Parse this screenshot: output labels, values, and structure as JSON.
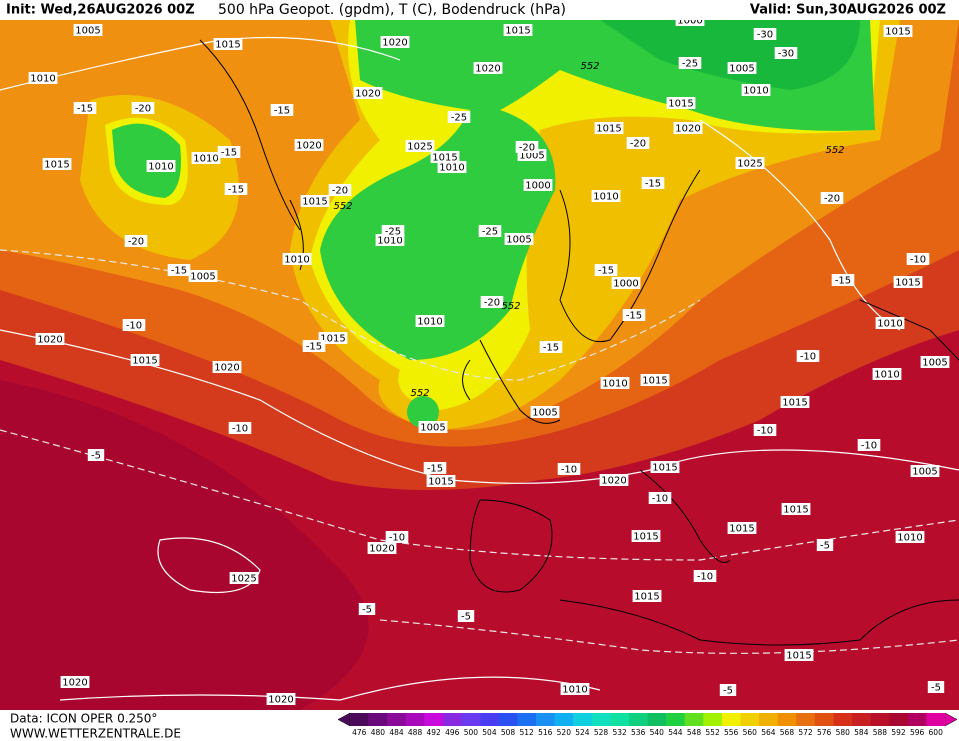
{
  "header": {
    "init": "Init: Wed,26AUG2026 00Z",
    "title": "500 hPa Geopot. (gpdm), T (C), Bodendruck (hPa)",
    "valid": "Valid: Sun,30AUG2026 00Z"
  },
  "footer": {
    "data": "Data: ICON OPER 0.250°",
    "site": "WWW.WETTERZENTRALE.DE"
  },
  "colorbar": {
    "labels": [
      476,
      480,
      484,
      488,
      492,
      496,
      500,
      504,
      508,
      512,
      516,
      520,
      524,
      528,
      532,
      536,
      540,
      544,
      548,
      552,
      556,
      560,
      564,
      568,
      572,
      576,
      580,
      584,
      588,
      592,
      596,
      600
    ],
    "colors": [
      "#4b0a5a",
      "#6a0a7a",
      "#8a0a9a",
      "#a80abb",
      "#c80adc",
      "#8a2ae0",
      "#6a3af0",
      "#4a3cf0",
      "#2a50f0",
      "#1a70f0",
      "#1a90f0",
      "#10b0f0",
      "#10d0e0",
      "#10e0c0",
      "#10e0a0",
      "#10d080",
      "#10c060",
      "#20d040",
      "#60e020",
      "#a0f000",
      "#f0f000",
      "#f0d000",
      "#f0b000",
      "#f09000",
      "#e87010",
      "#e05010",
      "#d83018",
      "#c82020",
      "#b81028",
      "#a80830",
      "#b00060",
      "#e000a0"
    ]
  },
  "pressure_labels": [
    1005,
    1015,
    1020,
    1015,
    1000,
    1015,
    1010,
    1020,
    1005,
    1010,
    1020,
    1015,
    1015,
    1020,
    1010,
    1020,
    1025,
    1015,
    1010,
    1005,
    1025,
    1015,
    1010,
    1000,
    1010,
    1015,
    1010,
    1005,
    1010,
    1005,
    1000,
    1015,
    1010,
    1010,
    1020,
    1015,
    1005,
    1015,
    1020,
    1010,
    1015,
    1010,
    1015,
    1005,
    1005,
    1015,
    1020,
    1015,
    1005,
    1015,
    1015,
    1015,
    1010,
    1020,
    1025,
    1015,
    1015,
    1020,
    1010,
    1020
  ],
  "temperature_labels": [
    -20,
    -15,
    -15,
    -25,
    -15,
    -20,
    -20,
    -15,
    -20,
    -15,
    -20,
    -20,
    -25,
    -25,
    -15,
    -15,
    -10,
    -15,
    -20,
    -15,
    -10,
    -15,
    -15,
    -10,
    -10,
    -5,
    -10,
    -10,
    -15,
    -10,
    -10,
    -10,
    -5,
    -10,
    -5,
    -5,
    -5,
    -5,
    -30,
    -30,
    -25
  ],
  "geopotential_labels": [
    552,
    552,
    552,
    552,
    552
  ]
}
